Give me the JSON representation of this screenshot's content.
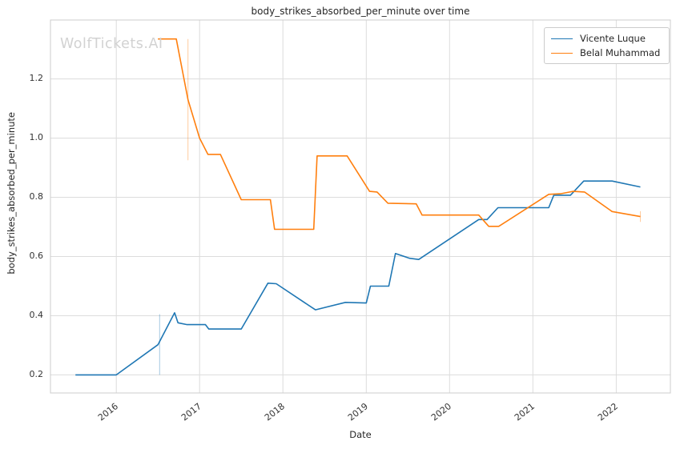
{
  "figure": {
    "title": "body_strikes_absorbed_per_minute over time",
    "watermark": "WolfTickets.AI"
  },
  "chart_data": {
    "type": "line",
    "title": "body_strikes_absorbed_per_minute over time",
    "xlabel": "Date",
    "ylabel": "body_strikes_absorbed_per_minute",
    "grid": true,
    "legend_position": "upper right",
    "xlim": [
      2015.21,
      2022.65
    ],
    "ylim": [
      0.139,
      1.399
    ],
    "x_ticks": [
      2016,
      2017,
      2018,
      2019,
      2020,
      2021,
      2022
    ],
    "y_ticks": [
      0.2,
      0.4,
      0.6,
      0.8,
      1.0,
      1.2
    ],
    "colors": {
      "grid": "#dcdcdc",
      "spine": "#cccccc",
      "tick_text": "#333333"
    },
    "series": [
      {
        "name": "Vicente Luque",
        "color": "#1f77b4",
        "points": [
          [
            2015.51,
            0.2
          ],
          [
            2016.0,
            0.2
          ],
          [
            2016.5,
            0.302
          ],
          [
            2016.7,
            0.41
          ],
          [
            2016.74,
            0.376
          ],
          [
            2016.85,
            0.37
          ],
          [
            2017.07,
            0.37
          ],
          [
            2017.11,
            0.355
          ],
          [
            2017.5,
            0.355
          ],
          [
            2017.82,
            0.51
          ],
          [
            2017.92,
            0.508
          ],
          [
            2018.39,
            0.42
          ],
          [
            2018.75,
            0.445
          ],
          [
            2019.0,
            0.443
          ],
          [
            2019.05,
            0.5
          ],
          [
            2019.27,
            0.5
          ],
          [
            2019.35,
            0.61
          ],
          [
            2019.52,
            0.594
          ],
          [
            2019.63,
            0.59
          ],
          [
            2020.35,
            0.725
          ],
          [
            2020.45,
            0.725
          ],
          [
            2020.58,
            0.765
          ],
          [
            2021.19,
            0.765
          ],
          [
            2021.25,
            0.807
          ],
          [
            2021.45,
            0.807
          ],
          [
            2021.61,
            0.855
          ],
          [
            2021.95,
            0.855
          ],
          [
            2022.29,
            0.835
          ]
        ]
      },
      {
        "name": "Belal Muhammad",
        "color": "#ff7f0e",
        "points": [
          [
            2016.5,
            1.335
          ],
          [
            2016.72,
            1.335
          ],
          [
            2016.86,
            1.13
          ],
          [
            2017.0,
            1.0
          ],
          [
            2017.1,
            0.945
          ],
          [
            2017.25,
            0.945
          ],
          [
            2017.5,
            0.792
          ],
          [
            2017.85,
            0.792
          ],
          [
            2017.9,
            0.692
          ],
          [
            2018.37,
            0.692
          ],
          [
            2018.41,
            0.94
          ],
          [
            2018.77,
            0.94
          ],
          [
            2019.04,
            0.82
          ],
          [
            2019.13,
            0.818
          ],
          [
            2019.26,
            0.78
          ],
          [
            2019.6,
            0.778
          ],
          [
            2019.67,
            0.74
          ],
          [
            2020.35,
            0.74
          ],
          [
            2020.47,
            0.702
          ],
          [
            2020.59,
            0.702
          ],
          [
            2021.19,
            0.81
          ],
          [
            2021.33,
            0.812
          ],
          [
            2021.48,
            0.82
          ],
          [
            2021.62,
            0.818
          ],
          [
            2021.95,
            0.752
          ],
          [
            2022.29,
            0.735
          ]
        ]
      }
    ],
    "error_bars": [
      {
        "series_index": 0,
        "x": 2016.52,
        "y_min": 0.2,
        "y_max": 0.405
      },
      {
        "series_index": 1,
        "x": 2016.86,
        "y_min": 0.925,
        "y_max": 1.335
      },
      {
        "series_index": 1,
        "x": 2022.29,
        "y_min": 0.717,
        "y_max": 0.753
      }
    ]
  }
}
